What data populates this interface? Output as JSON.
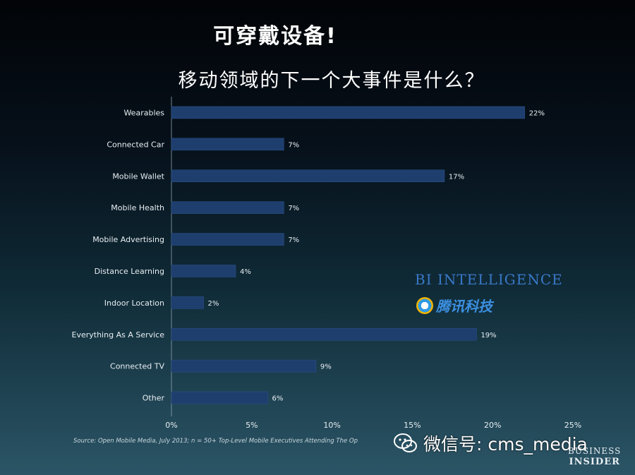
{
  "headline": "可穿戴设备!",
  "chart_data": {
    "type": "bar",
    "orientation": "horizontal",
    "title": "移动领域的下一个大事件是什么？",
    "categories": [
      "Wearables",
      "Connected Car",
      "Mobile Wallet",
      "Mobile Health",
      "Mobile Advertising",
      "Distance Learning",
      "Indoor Location",
      "Everything As A Service",
      "Connected TV",
      "Other"
    ],
    "values": [
      22,
      7,
      17,
      7,
      7,
      4,
      2,
      19,
      9,
      6
    ],
    "value_labels": [
      "22%",
      "7%",
      "17%",
      "7%",
      "7%",
      "4%",
      "2%",
      "19%",
      "9%",
      "6%"
    ],
    "xlim": [
      0,
      25
    ],
    "xticks": [
      0,
      5,
      10,
      15,
      20,
      25
    ],
    "xtick_labels": [
      "0%",
      "5%",
      "10%",
      "15%",
      "20%",
      "25%"
    ],
    "xlabel": "",
    "ylabel": "",
    "grid": false,
    "bar_color": "#1e3e6e"
  },
  "logos": {
    "bi_intelligence": "BI INTELLIGENCE",
    "tencent": "腾讯科技"
  },
  "source": "Source: Open Mobile Media, July 2013; n = 50+ Top-Level Mobile Executives Attending The Op",
  "wechat_label": "微信号: cms_media",
  "brand": {
    "line1": "BUSINESS",
    "line2": "INSIDER"
  }
}
